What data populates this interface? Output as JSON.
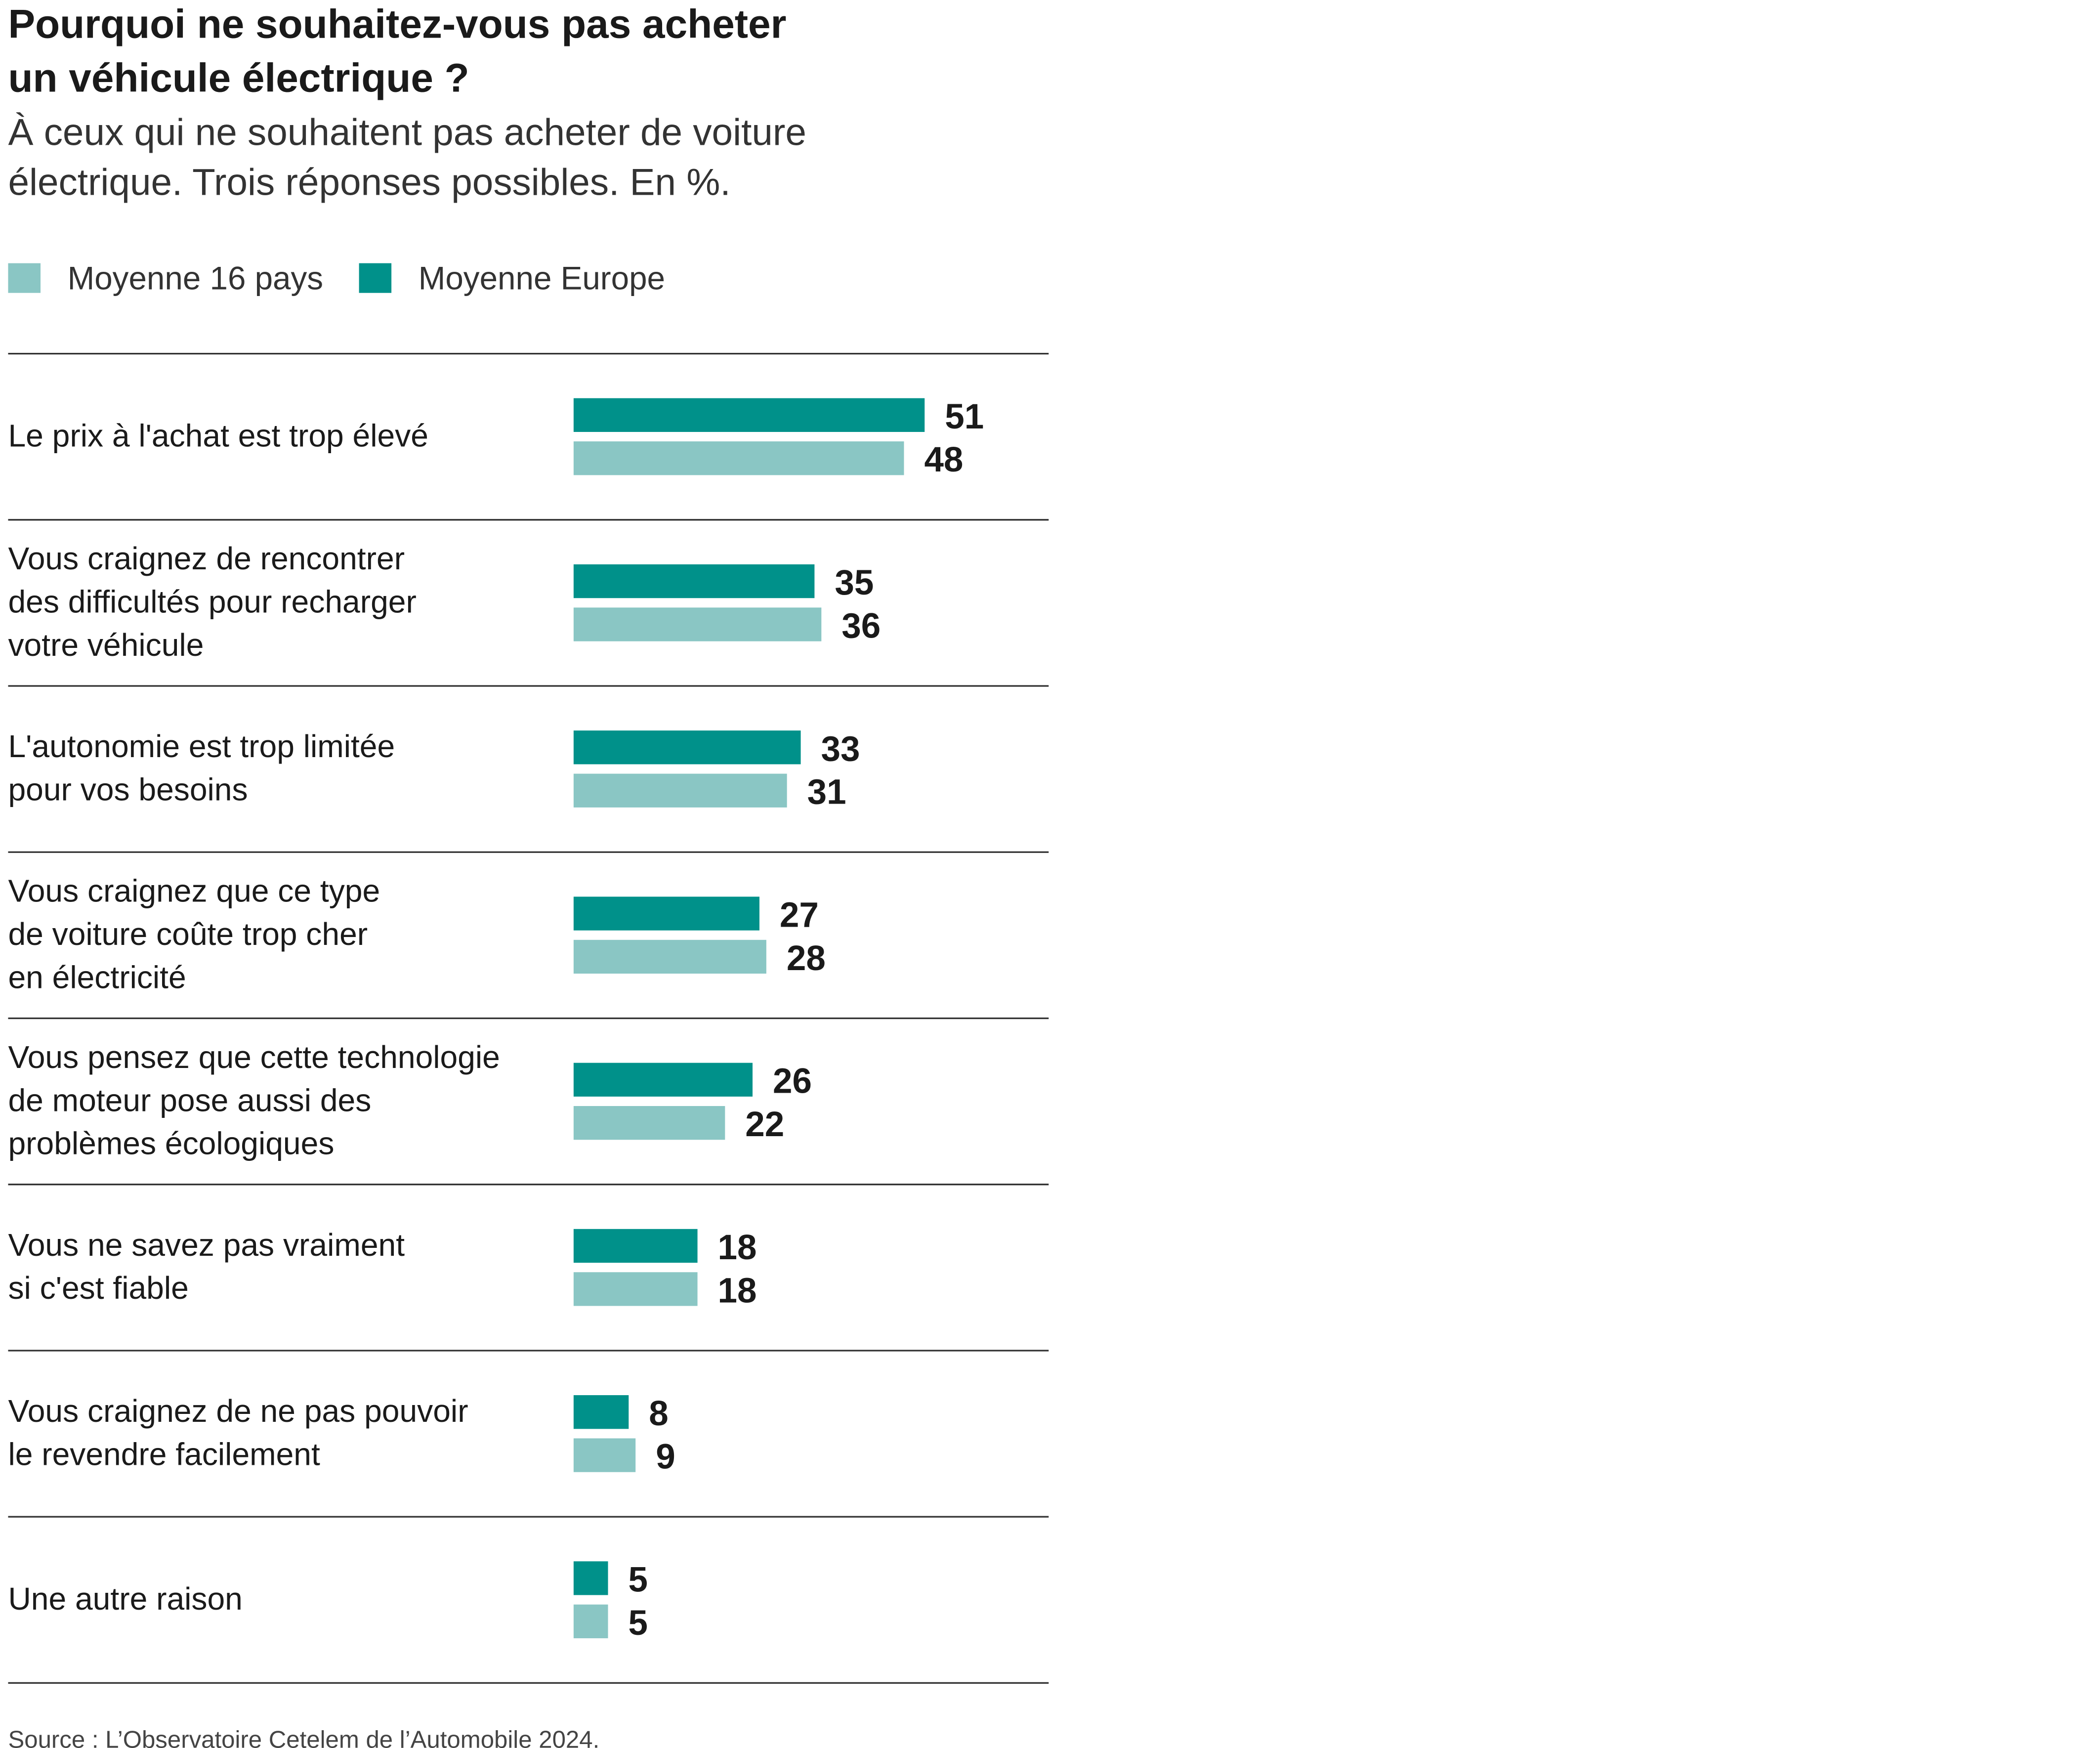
{
  "chart_data": {
    "type": "bar",
    "orientation": "horizontal",
    "title": [
      "Pourquoi ne souhaitez-vous pas acheter",
      "un véhicule électrique ?"
    ],
    "subtitle": [
      "À ceux qui ne souhaitent pas acheter de voiture",
      "électrique. Trois réponses possibles. En %."
    ],
    "categories": [
      [
        "Le prix à l'achat est trop élevé"
      ],
      [
        "Vous craignez de rencontrer",
        "des difficultés pour recharger",
        "votre véhicule"
      ],
      [
        "L'autonomie est trop limitée",
        "pour vos besoins"
      ],
      [
        "Vous craignez que ce type",
        "de voiture coûte trop cher",
        "en électricité"
      ],
      [
        "Vous pensez que cette technologie",
        "de moteur pose aussi des",
        "problèmes écologiques"
      ],
      [
        "Vous ne savez pas vraiment",
        "si c'est fiable"
      ],
      [
        "Vous craignez de ne pas pouvoir",
        "le revendre facilement"
      ],
      [
        "Une autre raison"
      ]
    ],
    "series": [
      {
        "name": "Moyenne 16 pays",
        "color": "#8ac6c4",
        "values": [
          48,
          36,
          31,
          28,
          22,
          18,
          9,
          5
        ]
      },
      {
        "name": "Moyenne Europe",
        "color": "#00918a",
        "values": [
          51,
          35,
          33,
          27,
          26,
          18,
          8,
          5
        ]
      }
    ],
    "source": "Source : L’Observatoire Cetelem de l’Automobile 2024."
  }
}
